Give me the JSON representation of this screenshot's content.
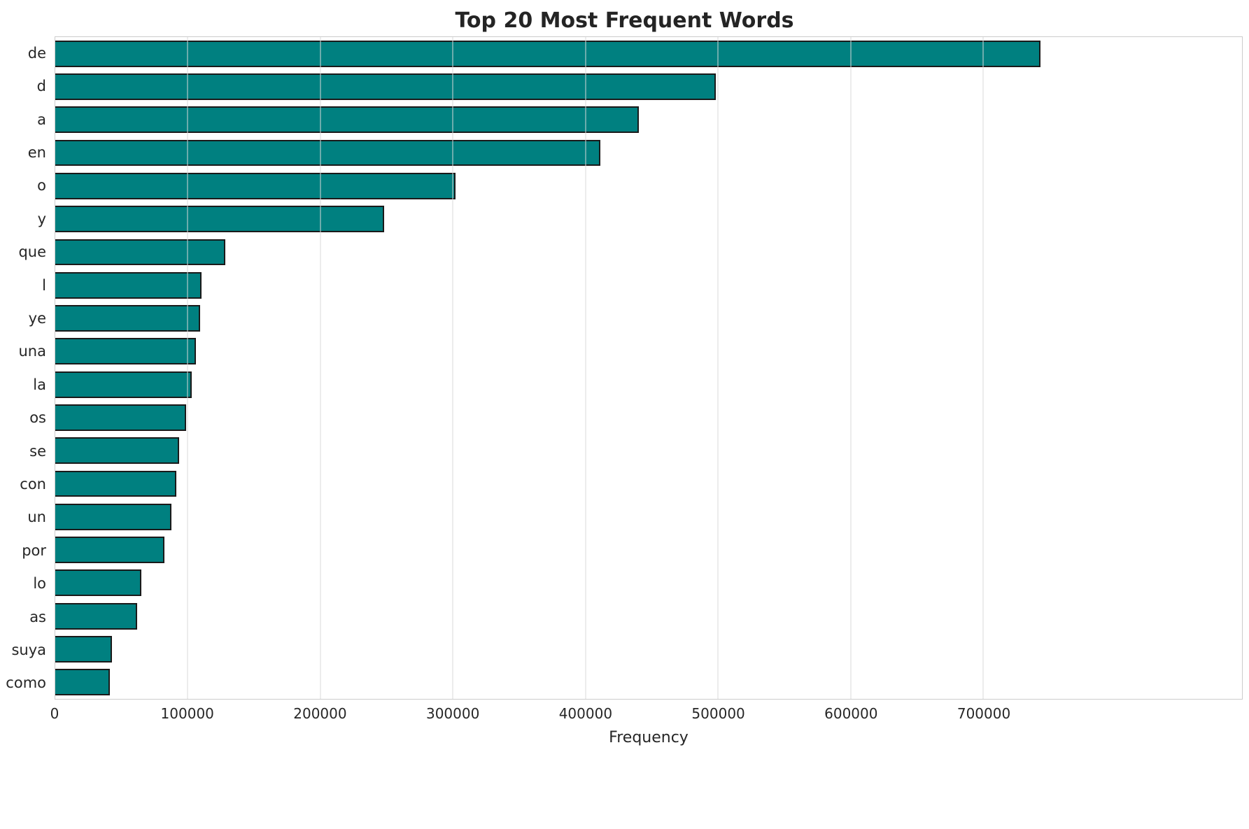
{
  "chart_data": {
    "type": "bar",
    "orientation": "horizontal",
    "title": "Top 20 Most Frequent Words",
    "xlabel": "Frequency",
    "ylabel": "",
    "grid": true,
    "legend": false,
    "bar_color": "#008080",
    "bar_edge_color": "#1a1a1a",
    "grid_color": "#d9d9d9",
    "xlim": [
      0,
      895000
    ],
    "x_ticks": [
      0,
      100000,
      200000,
      300000,
      400000,
      500000,
      600000,
      700000
    ],
    "categories": [
      "de",
      "d",
      "a",
      "en",
      "o",
      "y",
      "que",
      "l",
      "ye",
      "una",
      "la",
      "os",
      "se",
      "con",
      "un",
      "por",
      "lo",
      "as",
      "suya",
      "como"
    ],
    "values": [
      743000,
      498000,
      440000,
      411000,
      302000,
      248000,
      128000,
      110500,
      109500,
      106000,
      103000,
      98500,
      93500,
      91500,
      87500,
      82500,
      65000,
      61500,
      42500,
      41000
    ]
  }
}
